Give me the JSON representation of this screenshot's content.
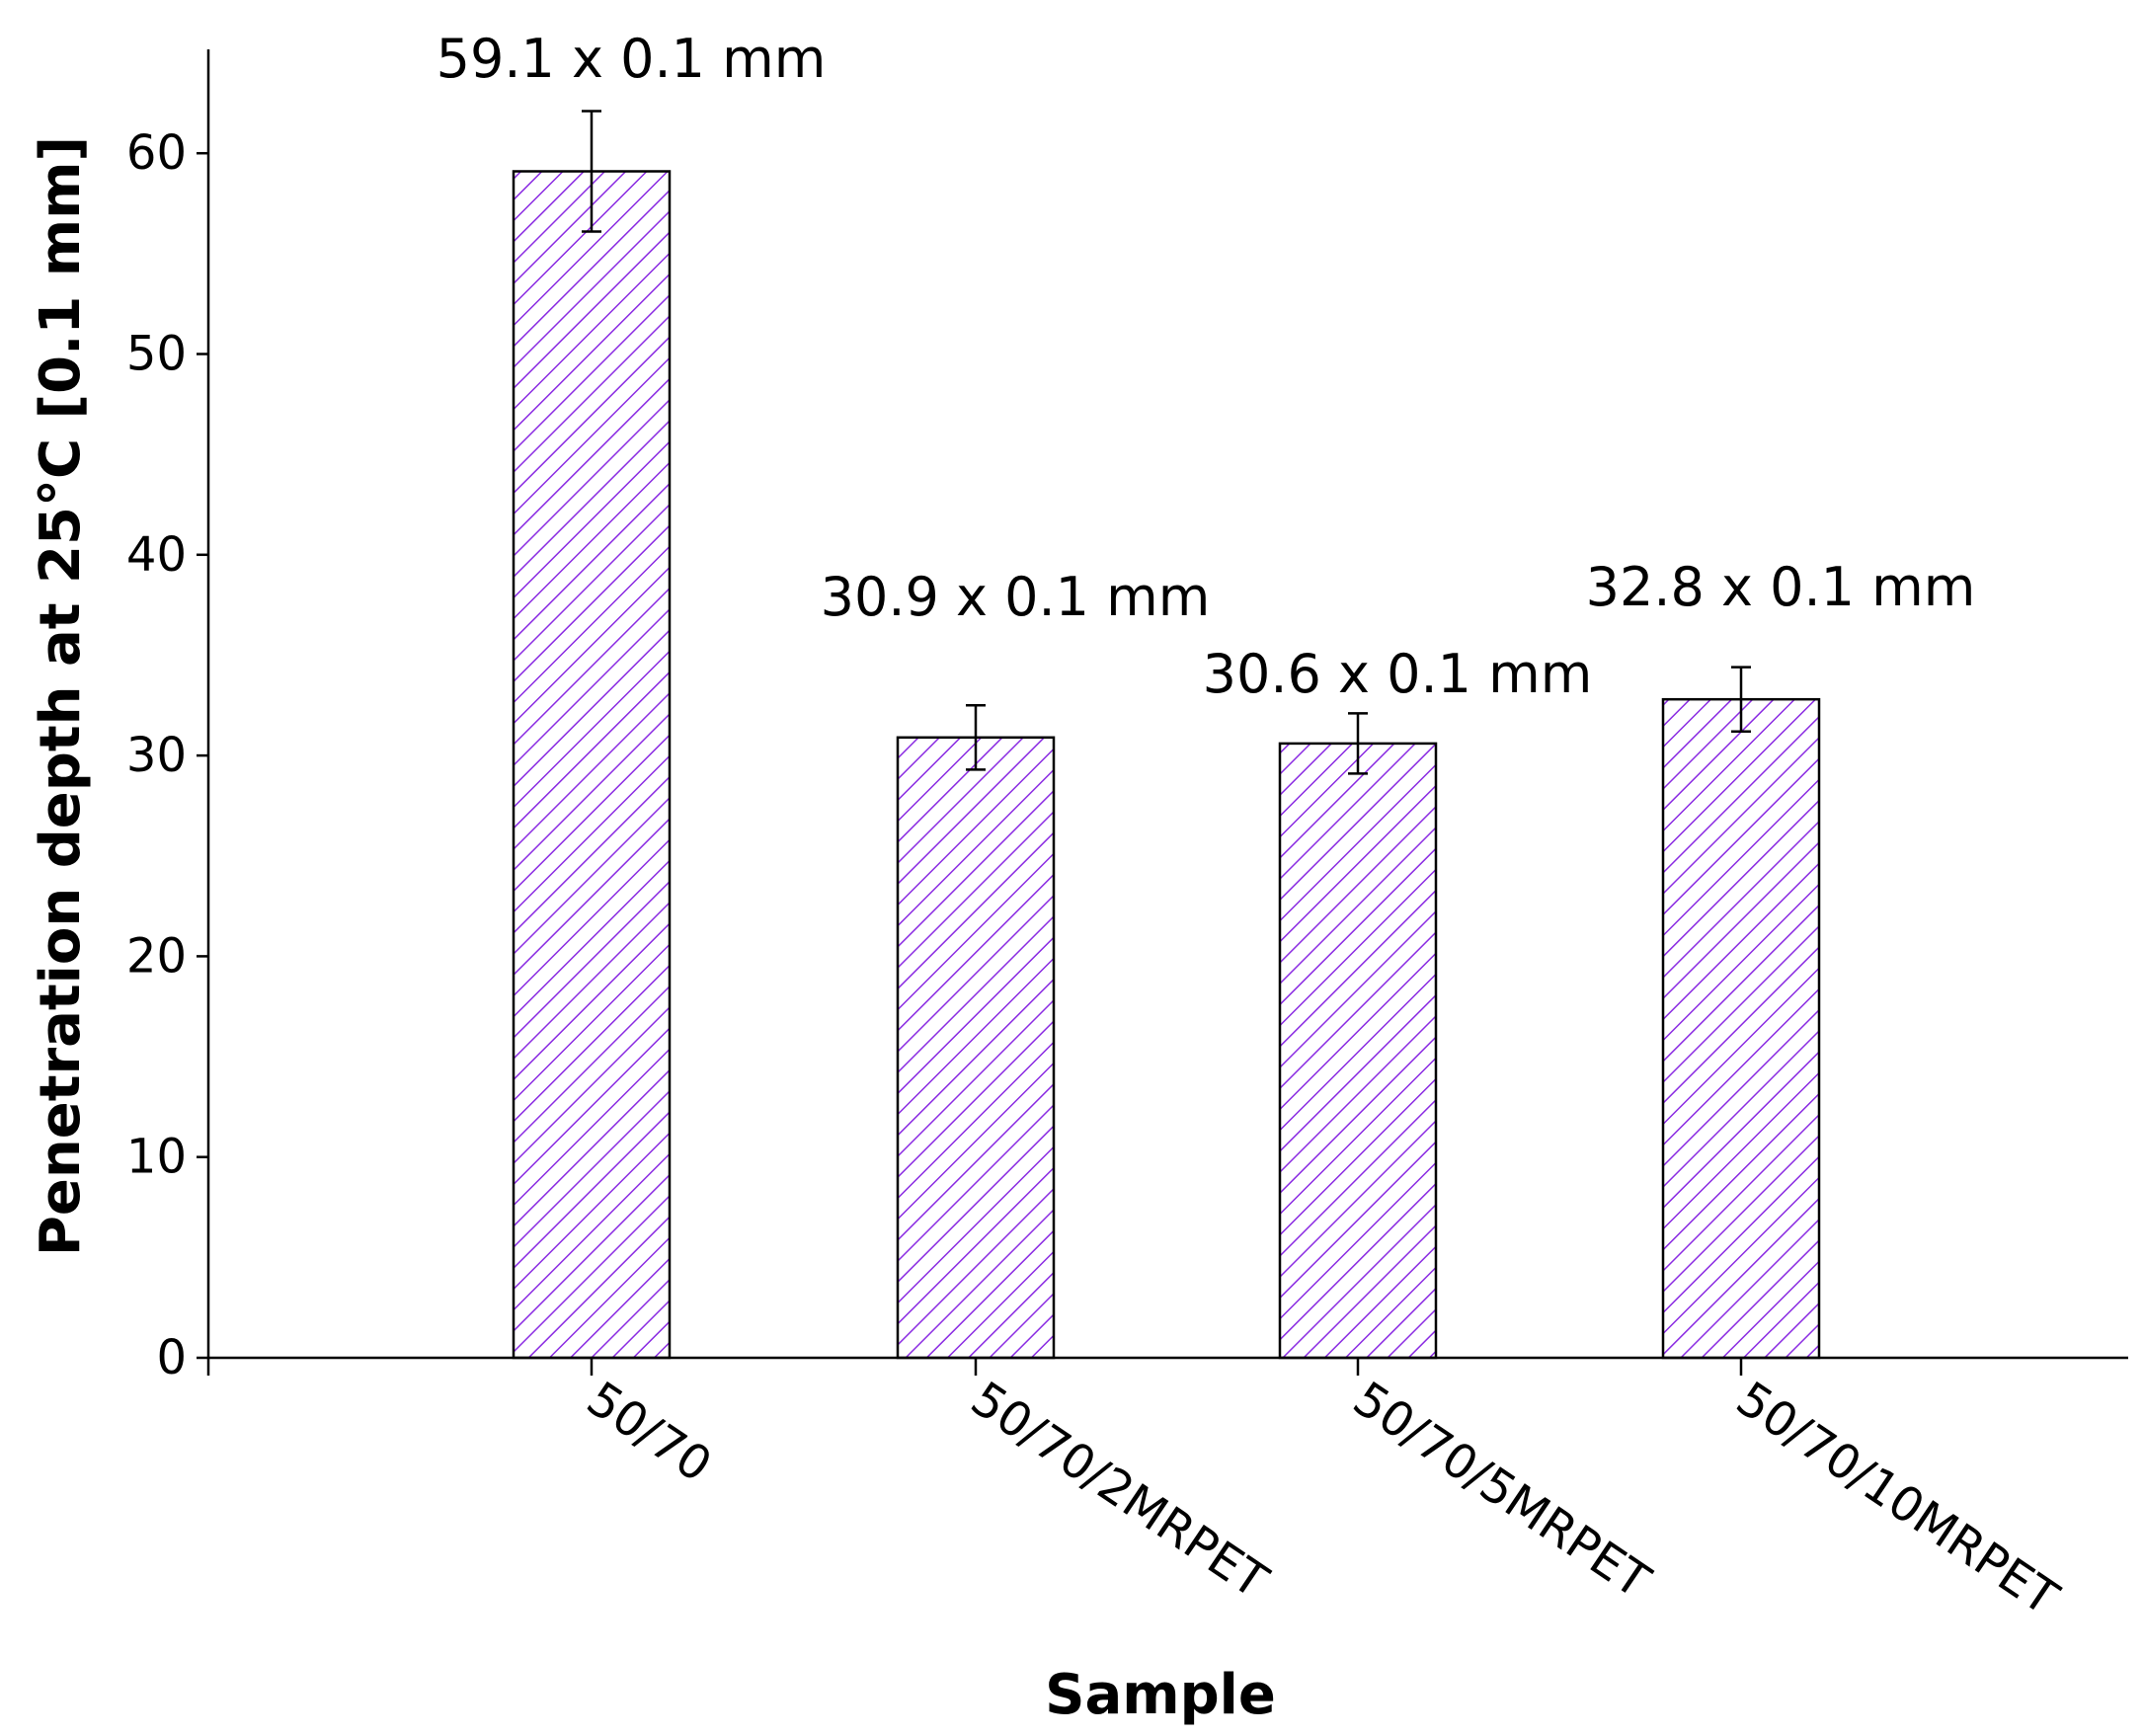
{
  "chart_data": {
    "type": "bar",
    "categories": [
      "50/70",
      "50/70/2MRPET",
      "50/70/5MRPET",
      "50/70/10MRPET"
    ],
    "values": [
      59.1,
      30.9,
      30.6,
      32.8
    ],
    "errors": [
      3.0,
      1.6,
      1.5,
      1.6
    ],
    "data_labels": [
      "59.1 x 0.1 mm",
      "30.9 x 0.1 mm",
      "30.6 x 0.1 mm",
      "32.8 x 0.1 mm"
    ],
    "title": "",
    "xlabel": "Sample",
    "ylabel": "Penetration depth at 25°C [0.1 mm]",
    "ylim": [
      0,
      65
    ],
    "yticks": [
      0,
      10,
      20,
      30,
      40,
      50,
      60
    ],
    "grid": false,
    "legend": "none",
    "bar_fill": "hatched",
    "hatch_color": "#8a2be2",
    "bar_edge_color": "#000000"
  }
}
